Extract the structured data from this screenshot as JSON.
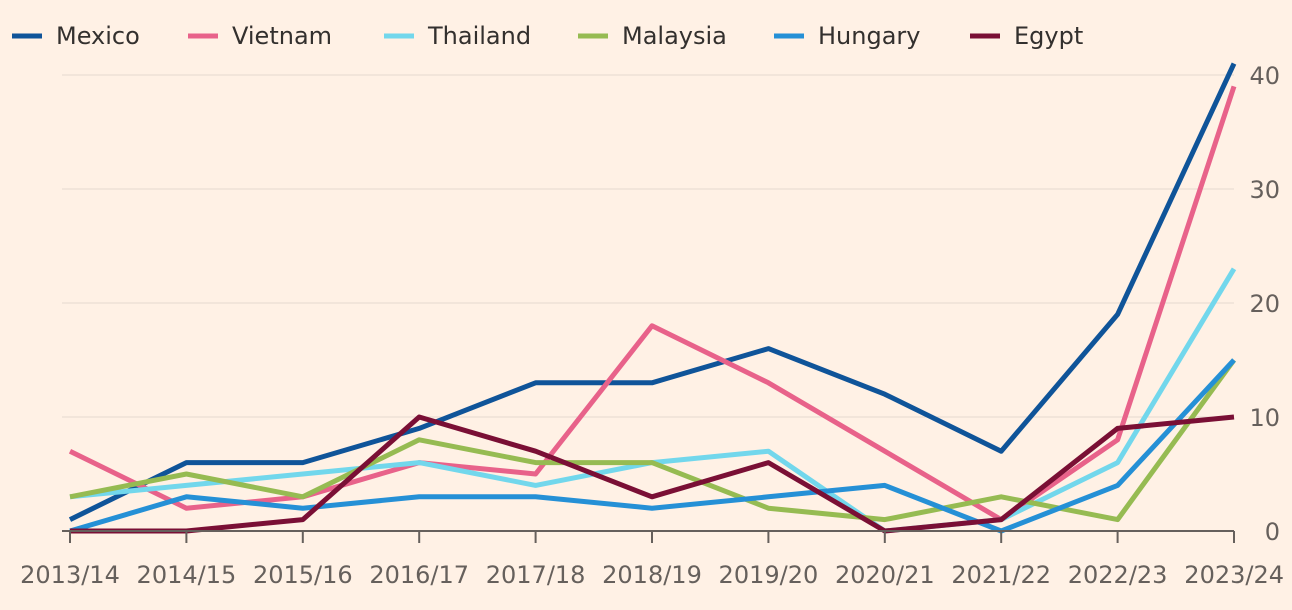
{
  "chart_data": {
    "type": "line",
    "title": "",
    "xlabel": "",
    "ylabel": "",
    "categories": [
      "2013/14",
      "2014/15",
      "2015/16",
      "2016/17",
      "2017/18",
      "2018/19",
      "2019/20",
      "2020/21",
      "2021/22",
      "2022/23",
      "2023/24"
    ],
    "ylim": [
      0,
      40
    ],
    "yticks": [
      0,
      10,
      20,
      30,
      40
    ],
    "grid": true,
    "y_axis_side": "right",
    "legend_position": "top",
    "series": [
      {
        "name": "Mexico",
        "color": "#0F5499",
        "values": [
          1,
          6,
          6,
          9,
          13,
          13,
          16,
          12,
          7,
          19,
          41
        ]
      },
      {
        "name": "Vietnam",
        "color": "#E8628A",
        "values": [
          7,
          2,
          3,
          6,
          5,
          18,
          13,
          7,
          1,
          8,
          39
        ]
      },
      {
        "name": "Thailand",
        "color": "#72D7EC",
        "values": [
          3,
          4,
          5,
          6,
          4,
          6,
          7,
          0,
          1,
          6,
          23
        ]
      },
      {
        "name": "Malaysia",
        "color": "#96BB52",
        "values": [
          3,
          5,
          3,
          8,
          6,
          6,
          2,
          1,
          3,
          1,
          15
        ]
      },
      {
        "name": "Hungary",
        "color": "#2590D6",
        "values": [
          0,
          3,
          2,
          3,
          3,
          2,
          3,
          4,
          0,
          4,
          15
        ]
      },
      {
        "name": "Egypt",
        "color": "#7A0F35",
        "values": [
          0,
          0,
          1,
          10,
          7,
          3,
          6,
          0,
          1,
          9,
          10
        ]
      }
    ]
  }
}
